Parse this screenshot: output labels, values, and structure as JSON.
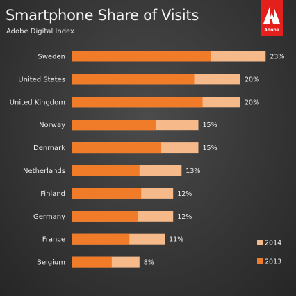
{
  "header": {
    "title": "Smartphone Share of  Visits",
    "subtitle": "Adobe Digital Index"
  },
  "brand": {
    "logo_text": "Adobe",
    "logo_icon": "adobe-logo-icon",
    "color": "#e3201b"
  },
  "colors": {
    "series_2013": "#f07c2a",
    "series_2014": "#f6b98a"
  },
  "chart_data": {
    "type": "bar",
    "orientation": "horizontal",
    "stacked": false,
    "overlapping": true,
    "title": "Smartphone Share of  Visits",
    "subtitle": "Adobe Digital Index",
    "categories": [
      "Sweden",
      "United States",
      "United Kingdom",
      "Norway",
      "Denmark",
      "Netherlands",
      "Finland",
      "Germany",
      "France",
      "Belgium"
    ],
    "series": [
      {
        "name": "2014",
        "values": [
          23,
          20,
          20,
          15,
          15,
          13,
          12,
          12,
          11,
          8
        ]
      },
      {
        "name": "2013",
        "values": [
          16.5,
          14.5,
          15.5,
          10.0,
          10.5,
          8.0,
          8.2,
          7.8,
          6.8,
          4.7
        ]
      }
    ],
    "value_labels": [
      "23%",
      "20%",
      "20%",
      "15%",
      "15%",
      "13%",
      "12%",
      "12%",
      "11%",
      "8%"
    ],
    "xlim": [
      0,
      25
    ],
    "grid": false,
    "legend_position": "bottom-right",
    "legend": [
      "2014",
      "2013"
    ]
  }
}
